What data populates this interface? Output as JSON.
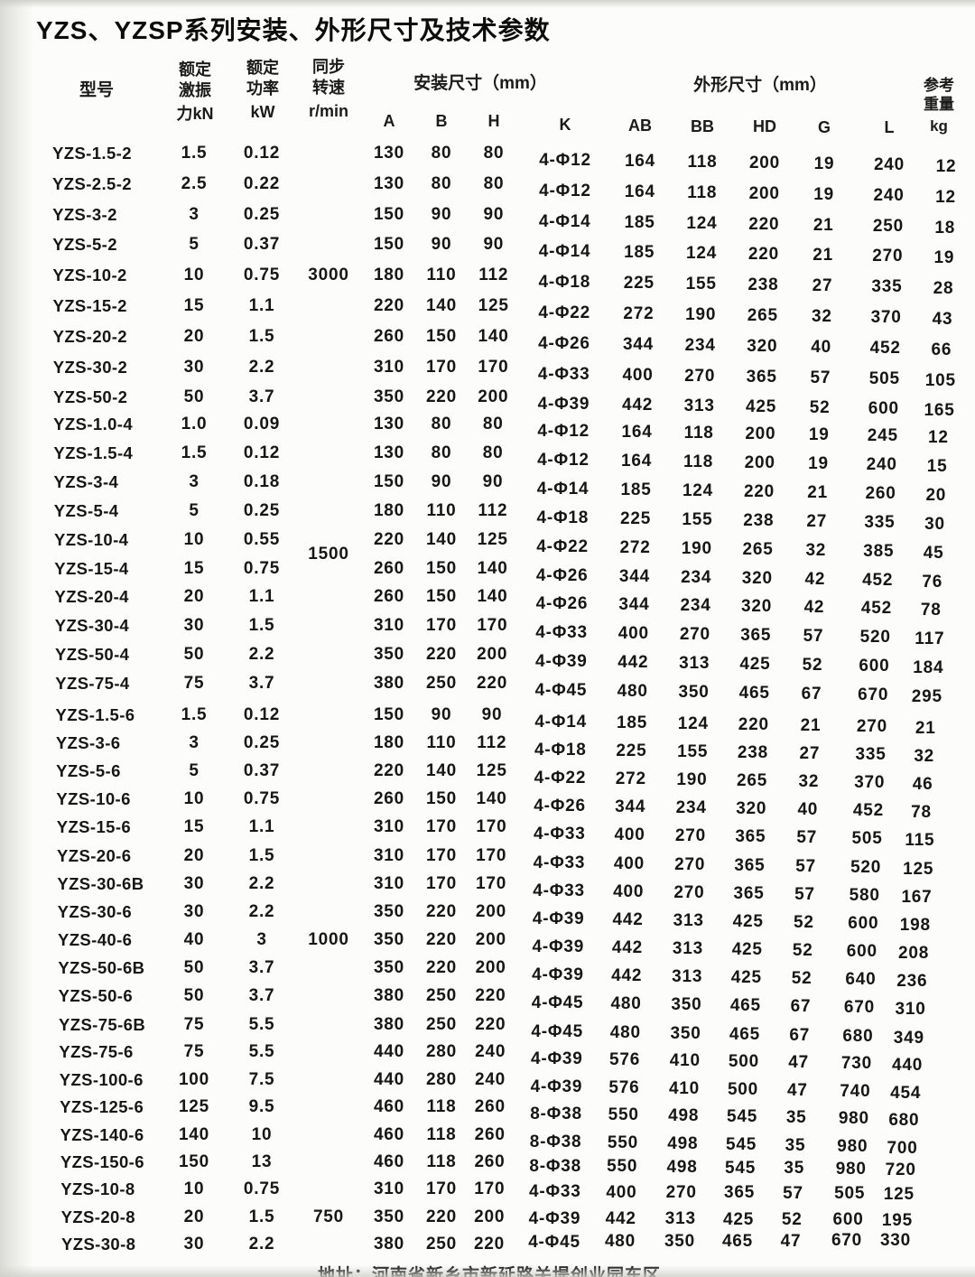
{
  "title": "YZS、YZSP系列安装、外形尺寸及技术参数",
  "header": {
    "model": "型号",
    "force_lines": [
      "额定",
      "激振",
      "力kN"
    ],
    "power_lines": [
      "额定",
      "功率",
      "kW"
    ],
    "speed_lines": [
      "同步",
      "转速",
      "r/min"
    ],
    "install_group": "安装尺寸（mm）",
    "outline_group": "外形尺寸（mm）",
    "columns": [
      "A",
      "B",
      "H",
      "K",
      "AB",
      "BB",
      "HD",
      "G",
      "L"
    ],
    "weight_lines": [
      "参考",
      "重量",
      "kg"
    ]
  },
  "rows": [
    {
      "m": "YZS-1.5-2",
      "kn": "1.5",
      "kw": "0.12",
      "sp": "",
      "a": "130",
      "b": "80",
      "h": "80",
      "k": "4-Φ12",
      "ab": "164",
      "bb": "118",
      "hd": "200",
      "g": "19",
      "l": "240",
      "kg": "12"
    },
    {
      "m": "YZS-2.5-2",
      "kn": "2.5",
      "kw": "0.22",
      "sp": "",
      "a": "130",
      "b": "80",
      "h": "80",
      "k": "4-Φ12",
      "ab": "164",
      "bb": "118",
      "hd": "200",
      "g": "19",
      "l": "240",
      "kg": "12"
    },
    {
      "m": "YZS-3-2",
      "kn": "3",
      "kw": "0.25",
      "sp": "",
      "a": "150",
      "b": "90",
      "h": "90",
      "k": "4-Φ14",
      "ab": "185",
      "bb": "124",
      "hd": "220",
      "g": "21",
      "l": "250",
      "kg": "18"
    },
    {
      "m": "YZS-5-2",
      "kn": "5",
      "kw": "0.37",
      "sp": "",
      "a": "150",
      "b": "90",
      "h": "90",
      "k": "4-Φ14",
      "ab": "185",
      "bb": "124",
      "hd": "220",
      "g": "21",
      "l": "270",
      "kg": "19"
    },
    {
      "m": "YZS-10-2",
      "kn": "10",
      "kw": "0.75",
      "sp": "3000",
      "a": "180",
      "b": "110",
      "h": "112",
      "k": "4-Φ18",
      "ab": "225",
      "bb": "155",
      "hd": "238",
      "g": "27",
      "l": "335",
      "kg": "28"
    },
    {
      "m": "YZS-15-2",
      "kn": "15",
      "kw": "1.1",
      "sp": "",
      "a": "220",
      "b": "140",
      "h": "125",
      "k": "4-Φ22",
      "ab": "272",
      "bb": "190",
      "hd": "265",
      "g": "32",
      "l": "370",
      "kg": "43"
    },
    {
      "m": "YZS-20-2",
      "kn": "20",
      "kw": "1.5",
      "sp": "",
      "a": "260",
      "b": "150",
      "h": "140",
      "k": "4-Φ26",
      "ab": "344",
      "bb": "234",
      "hd": "320",
      "g": "40",
      "l": "452",
      "kg": "66"
    },
    {
      "m": "YZS-30-2",
      "kn": "30",
      "kw": "2.2",
      "sp": "",
      "a": "310",
      "b": "170",
      "h": "170",
      "k": "4-Φ33",
      "ab": "400",
      "bb": "270",
      "hd": "365",
      "g": "57",
      "l": "505",
      "kg": "105"
    },
    {
      "m": "YZS-50-2",
      "kn": "50",
      "kw": "3.7",
      "sp": "",
      "a": "350",
      "b": "220",
      "h": "200",
      "k": "4-Φ39",
      "ab": "442",
      "bb": "313",
      "hd": "425",
      "g": "52",
      "l": "600",
      "kg": "165"
    },
    {
      "m": "YZS-1.0-4",
      "kn": "1.0",
      "kw": "0.09",
      "sp": "",
      "a": "130",
      "b": "80",
      "h": "80",
      "k": "4-Φ12",
      "ab": "164",
      "bb": "118",
      "hd": "200",
      "g": "19",
      "l": "245",
      "kg": "12"
    },
    {
      "m": "YZS-1.5-4",
      "kn": "1.5",
      "kw": "0.12",
      "sp": "",
      "a": "130",
      "b": "80",
      "h": "80",
      "k": "4-Φ12",
      "ab": "164",
      "bb": "118",
      "hd": "200",
      "g": "19",
      "l": "240",
      "kg": "15"
    },
    {
      "m": "YZS-3-4",
      "kn": "3",
      "kw": "0.18",
      "sp": "",
      "a": "150",
      "b": "90",
      "h": "90",
      "k": "4-Φ14",
      "ab": "185",
      "bb": "124",
      "hd": "220",
      "g": "21",
      "l": "260",
      "kg": "20"
    },
    {
      "m": "YZS-5-4",
      "kn": "5",
      "kw": "0.25",
      "sp": "",
      "a": "180",
      "b": "110",
      "h": "112",
      "k": "4-Φ18",
      "ab": "225",
      "bb": "155",
      "hd": "238",
      "g": "27",
      "l": "335",
      "kg": "30"
    },
    {
      "m": "YZS-10-4",
      "kn": "10",
      "kw": "0.55",
      "sp": "1500",
      "a": "220",
      "b": "140",
      "h": "125",
      "k": "4-Φ22",
      "ab": "272",
      "bb": "190",
      "hd": "265",
      "g": "32",
      "l": "385",
      "kg": "45"
    },
    {
      "m": "YZS-15-4",
      "kn": "15",
      "kw": "0.75",
      "sp": "",
      "a": "260",
      "b": "150",
      "h": "140",
      "k": "4-Φ26",
      "ab": "344",
      "bb": "234",
      "hd": "320",
      "g": "42",
      "l": "452",
      "kg": "76"
    },
    {
      "m": "YZS-20-4",
      "kn": "20",
      "kw": "1.1",
      "sp": "",
      "a": "260",
      "b": "150",
      "h": "140",
      "k": "4-Φ26",
      "ab": "344",
      "bb": "234",
      "hd": "320",
      "g": "42",
      "l": "452",
      "kg": "78"
    },
    {
      "m": "YZS-30-4",
      "kn": "30",
      "kw": "1.5",
      "sp": "",
      "a": "310",
      "b": "170",
      "h": "170",
      "k": "4-Φ33",
      "ab": "400",
      "bb": "270",
      "hd": "365",
      "g": "57",
      "l": "520",
      "kg": "117"
    },
    {
      "m": "YZS-50-4",
      "kn": "50",
      "kw": "2.2",
      "sp": "",
      "a": "350",
      "b": "220",
      "h": "200",
      "k": "4-Φ39",
      "ab": "442",
      "bb": "313",
      "hd": "425",
      "g": "52",
      "l": "600",
      "kg": "184"
    },
    {
      "m": "YZS-75-4",
      "kn": "75",
      "kw": "3.7",
      "sp": "",
      "a": "380",
      "b": "250",
      "h": "220",
      "k": "4-Φ45",
      "ab": "480",
      "bb": "350",
      "hd": "465",
      "g": "67",
      "l": "670",
      "kg": "295"
    },
    {
      "m": "YZS-1.5-6",
      "kn": "1.5",
      "kw": "0.12",
      "sp": "",
      "a": "150",
      "b": "90",
      "h": "90",
      "k": "4-Φ14",
      "ab": "185",
      "bb": "124",
      "hd": "220",
      "g": "21",
      "l": "270",
      "kg": "21"
    },
    {
      "m": "YZS-3-6",
      "kn": "3",
      "kw": "0.25",
      "sp": "",
      "a": "180",
      "b": "110",
      "h": "112",
      "k": "4-Φ18",
      "ab": "225",
      "bb": "155",
      "hd": "238",
      "g": "27",
      "l": "335",
      "kg": "32"
    },
    {
      "m": "YZS-5-6",
      "kn": "5",
      "kw": "0.37",
      "sp": "",
      "a": "220",
      "b": "140",
      "h": "125",
      "k": "4-Φ22",
      "ab": "272",
      "bb": "190",
      "hd": "265",
      "g": "32",
      "l": "370",
      "kg": "46"
    },
    {
      "m": "YZS-10-6",
      "kn": "10",
      "kw": "0.75",
      "sp": "",
      "a": "260",
      "b": "150",
      "h": "140",
      "k": "4-Φ26",
      "ab": "344",
      "bb": "234",
      "hd": "320",
      "g": "40",
      "l": "452",
      "kg": "78"
    },
    {
      "m": "YZS-15-6",
      "kn": "15",
      "kw": "1.1",
      "sp": "",
      "a": "310",
      "b": "170",
      "h": "170",
      "k": "4-Φ33",
      "ab": "400",
      "bb": "270",
      "hd": "365",
      "g": "57",
      "l": "505",
      "kg": "115"
    },
    {
      "m": "YZS-20-6",
      "kn": "20",
      "kw": "1.5",
      "sp": "",
      "a": "310",
      "b": "170",
      "h": "170",
      "k": "4-Φ33",
      "ab": "400",
      "bb": "270",
      "hd": "365",
      "g": "57",
      "l": "520",
      "kg": "125"
    },
    {
      "m": "YZS-30-6B",
      "kn": "30",
      "kw": "2.2",
      "sp": "",
      "a": "310",
      "b": "170",
      "h": "170",
      "k": "4-Φ33",
      "ab": "400",
      "bb": "270",
      "hd": "365",
      "g": "57",
      "l": "580",
      "kg": "167"
    },
    {
      "m": "YZS-30-6",
      "kn": "30",
      "kw": "2.2",
      "sp": "",
      "a": "350",
      "b": "220",
      "h": "200",
      "k": "4-Φ39",
      "ab": "442",
      "bb": "313",
      "hd": "425",
      "g": "52",
      "l": "600",
      "kg": "198"
    },
    {
      "m": "YZS-40-6",
      "kn": "40",
      "kw": "3",
      "sp": "1000",
      "a": "350",
      "b": "220",
      "h": "200",
      "k": "4-Φ39",
      "ab": "442",
      "bb": "313",
      "hd": "425",
      "g": "52",
      "l": "600",
      "kg": "208"
    },
    {
      "m": "YZS-50-6B",
      "kn": "50",
      "kw": "3.7",
      "sp": "",
      "a": "350",
      "b": "220",
      "h": "200",
      "k": "4-Φ39",
      "ab": "442",
      "bb": "313",
      "hd": "425",
      "g": "52",
      "l": "640",
      "kg": "236"
    },
    {
      "m": "YZS-50-6",
      "kn": "50",
      "kw": "3.7",
      "sp": "",
      "a": "380",
      "b": "250",
      "h": "220",
      "k": "4-Φ45",
      "ab": "480",
      "bb": "350",
      "hd": "465",
      "g": "67",
      "l": "670",
      "kg": "310"
    },
    {
      "m": "YZS-75-6B",
      "kn": "75",
      "kw": "5.5",
      "sp": "",
      "a": "380",
      "b": "250",
      "h": "220",
      "k": "4-Φ45",
      "ab": "480",
      "bb": "350",
      "hd": "465",
      "g": "67",
      "l": "680",
      "kg": "349"
    },
    {
      "m": "YZS-75-6",
      "kn": "75",
      "kw": "5.5",
      "sp": "",
      "a": "440",
      "b": "280",
      "h": "240",
      "k": "4-Φ39",
      "ab": "576",
      "bb": "410",
      "hd": "500",
      "g": "47",
      "l": "730",
      "kg": "440"
    },
    {
      "m": "YZS-100-6",
      "kn": "100",
      "kw": "7.5",
      "sp": "",
      "a": "440",
      "b": "280",
      "h": "240",
      "k": "4-Φ39",
      "ab": "576",
      "bb": "410",
      "hd": "500",
      "g": "47",
      "l": "740",
      "kg": "454"
    },
    {
      "m": "YZS-125-6",
      "kn": "125",
      "kw": "9.5",
      "sp": "",
      "a": "460",
      "b": "118",
      "h": "260",
      "k": "8-Φ38",
      "ab": "550",
      "bb": "498",
      "hd": "545",
      "g": "35",
      "l": "980",
      "kg": "680"
    },
    {
      "m": "YZS-140-6",
      "kn": "140",
      "kw": "10",
      "sp": "",
      "a": "460",
      "b": "118",
      "h": "260",
      "k": "8-Φ38",
      "ab": "550",
      "bb": "498",
      "hd": "545",
      "g": "35",
      "l": "980",
      "kg": "700"
    },
    {
      "m": "YZS-150-6",
      "kn": "150",
      "kw": "13",
      "sp": "",
      "a": "460",
      "b": "118",
      "h": "260",
      "k": "8-Φ38",
      "ab": "550",
      "bb": "498",
      "hd": "545",
      "g": "35",
      "l": "980",
      "kg": "720"
    },
    {
      "m": "YZS-10-8",
      "kn": "10",
      "kw": "0.75",
      "sp": "",
      "a": "310",
      "b": "170",
      "h": "170",
      "k": "4-Φ33",
      "ab": "400",
      "bb": "270",
      "hd": "365",
      "g": "57",
      "l": "505",
      "kg": "125"
    },
    {
      "m": "YZS-20-8",
      "kn": "20",
      "kw": "1.5",
      "sp": "750",
      "a": "350",
      "b": "220",
      "h": "200",
      "k": "4-Φ39",
      "ab": "442",
      "bb": "313",
      "hd": "425",
      "g": "52",
      "l": "600",
      "kg": "195"
    },
    {
      "m": "YZS-30-8",
      "kn": "30",
      "kw": "2.2",
      "sp": "",
      "a": "380",
      "b": "250",
      "h": "220",
      "k": "4-Φ45",
      "ab": "480",
      "bb": "350",
      "hd": "465",
      "g": "47",
      "l": "670",
      "kg": "330"
    }
  ],
  "footer": {
    "address": "地址：河南省新乡市新延路关堤创业园东区"
  }
}
